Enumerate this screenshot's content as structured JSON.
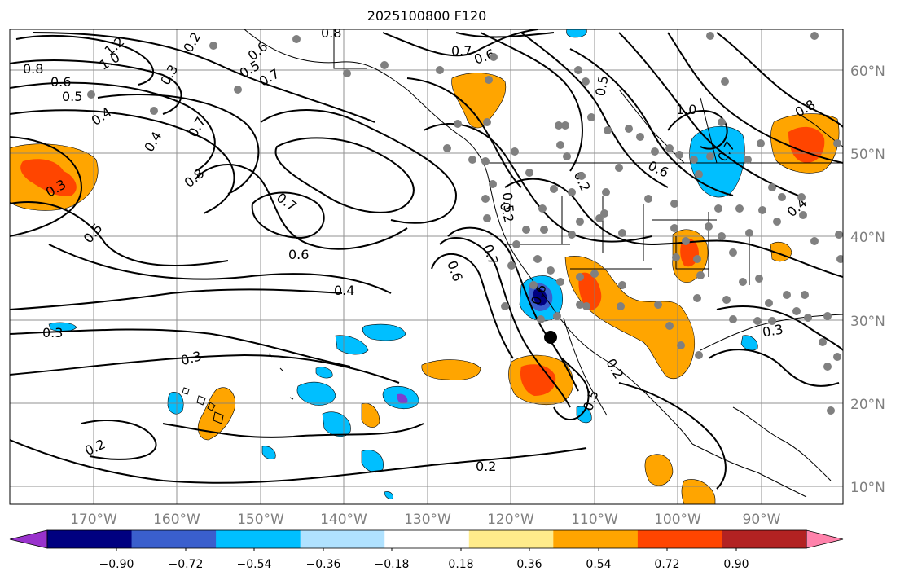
{
  "title": "2025100800 F120",
  "map": {
    "lon_labels": [
      "170°W",
      "160°W",
      "150°W",
      "140°W",
      "130°W",
      "120°W",
      "110°W",
      "100°W",
      "90°W"
    ],
    "lat_labels": [
      "60°N",
      "50°N",
      "40°N",
      "30°N",
      "20°N",
      "10°N"
    ],
    "grid_color": "#7f7f7f",
    "station_marker_color": "#808080",
    "contour_color": "#000000",
    "contour_labels": [
      "1.2",
      "1.0",
      "0.2",
      "0.8",
      "0.7",
      "0.6",
      "0.5",
      "0.3",
      "0.8",
      "0.6",
      "0.5",
      "0.4",
      "0.4",
      "0.7",
      "0.8",
      "0.7",
      "0.6",
      "0.5",
      "0.3",
      "0.3",
      "0.6",
      "0.4",
      "0.3",
      "0.2",
      "0.2",
      "0.6",
      "0.7",
      "0.2",
      "0.5",
      "0.6",
      "0.5",
      "0.2",
      "1.0",
      "0.7",
      "0.6",
      "0.8",
      "0.4",
      "0.3",
      "0.5",
      "0.7",
      "0.2"
    ]
  },
  "colorbar": {
    "tick_labels": [
      "−0.90",
      "−0.72",
      "−0.54",
      "−0.36",
      "−0.18",
      "0.18",
      "0.36",
      "0.54",
      "0.72",
      "0.90"
    ],
    "colors": [
      "#9932cc",
      "#000080",
      "#3a5fcd",
      "#00bfff",
      "#b0e2ff",
      "#ffffff",
      "#ffec8b",
      "#ffa500",
      "#ff4500",
      "#b22222",
      "#ff82ab"
    ]
  }
}
